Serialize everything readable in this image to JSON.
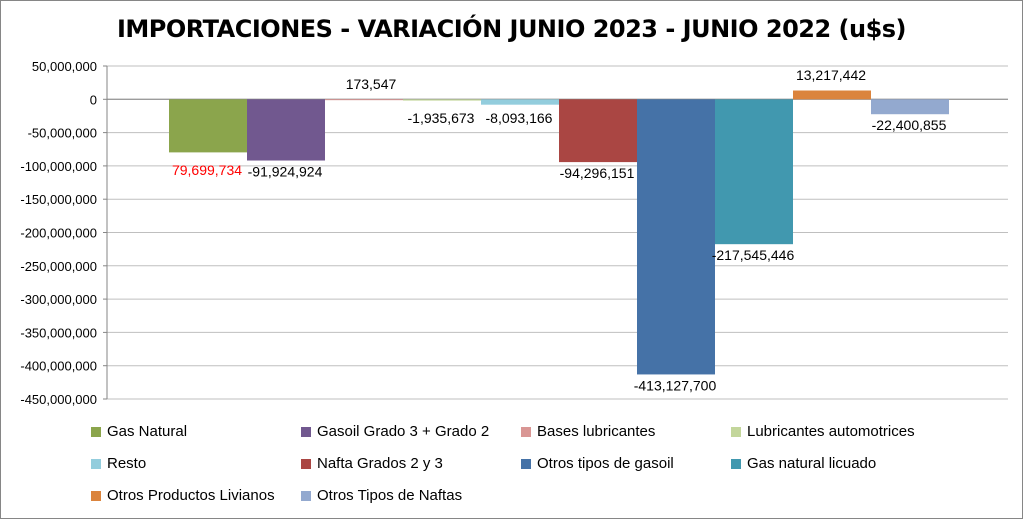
{
  "chart_data": {
    "type": "bar",
    "title": "IMPORTACIONES - VARIACIÓN JUNIO 2023 - JUNIO 2022 (u$s)",
    "xlabel": "",
    "ylabel": "",
    "ylim": [
      -450000000,
      50000000
    ],
    "ytick_step": 50000000,
    "yticks": [
      "50,000,000",
      "0",
      "-50,000,000",
      "-100,000,000",
      "-150,000,000",
      "-200,000,000",
      "-250,000,000",
      "-300,000,000",
      "-350,000,000",
      "-400,000,000",
      "-450,000,000"
    ],
    "grid": true,
    "legend_position": "bottom",
    "series": [
      {
        "name": "Gas Natural",
        "value": -79699734,
        "label": "79,699,734",
        "color": "#8BA54C",
        "label_color": "#FF0000"
      },
      {
        "name": "Gasoil Grado 3 + Grado 2",
        "value": -91924924,
        "label": "-91,924,924",
        "color": "#71588F",
        "label_color": "#000000"
      },
      {
        "name": "Bases lubricantes",
        "value": 173547,
        "label": "173,547",
        "color": "#D99694",
        "label_color": "#000000"
      },
      {
        "name": "Lubricantes automotrices",
        "value": -1935673,
        "label": "-1,935,673",
        "color": "#C3D69B",
        "label_color": "#000000"
      },
      {
        "name": "Resto",
        "value": -8093166,
        "label": "-8,093,166",
        "color": "#93CDDD",
        "label_color": "#000000"
      },
      {
        "name": "Nafta Grados 2 y 3",
        "value": -94296151,
        "label": "-94,296,151",
        "color": "#AA4643",
        "label_color": "#000000"
      },
      {
        "name": "Otros tipos de gasoil",
        "value": -413127700,
        "label": "-413,127,700",
        "color": "#4572A7",
        "label_color": "#000000"
      },
      {
        "name": "Gas natural licuado",
        "value": -217545446,
        "label": "-217,545,446",
        "color": "#4198AF",
        "label_color": "#000000"
      },
      {
        "name": "Otros Productos Livianos",
        "value": 13217442,
        "label": "13,217,442",
        "color": "#DB843D",
        "label_color": "#000000"
      },
      {
        "name": "Otros Tipos de Naftas",
        "value": -22400855,
        "label": "-22,400,855",
        "color": "#93A9CF",
        "label_color": "#000000"
      }
    ]
  }
}
